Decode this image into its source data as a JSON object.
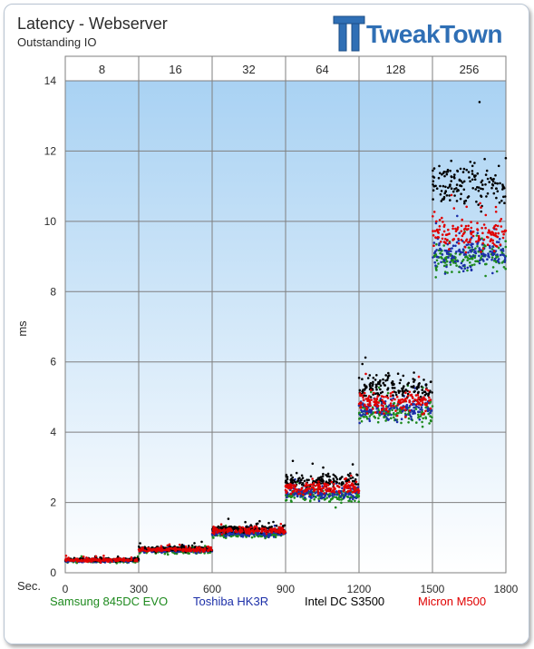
{
  "header": {
    "title": "Latency - Webserver",
    "subtitle": "Outstanding IO",
    "logo_text": "TweakTown"
  },
  "chart_data": {
    "type": "scatter",
    "title": "Latency - Webserver",
    "subtitle": "Outstanding IO",
    "xlabel": "Sec.",
    "ylabel": "ms",
    "xlim": [
      0,
      1800
    ],
    "ylim": [
      0,
      14
    ],
    "x_ticks": [
      0,
      300,
      600,
      900,
      1200,
      1500,
      1800
    ],
    "y_ticks": [
      0,
      2,
      4,
      6,
      8,
      10,
      12,
      14
    ],
    "grid": true,
    "top_axis": {
      "title": "Outstanding IO",
      "categories": [
        "8",
        "16",
        "32",
        "64",
        "128",
        "256"
      ],
      "segment_bounds": [
        [
          0,
          300
        ],
        [
          300,
          600
        ],
        [
          600,
          900
        ],
        [
          900,
          1200
        ],
        [
          1200,
          1500
        ],
        [
          1500,
          1800
        ]
      ]
    },
    "legend_position": "bottom",
    "series": [
      {
        "name": "Samsung 845DC  EVO",
        "color": "#1e8a1e",
        "segment_means": [
          0.34,
          0.62,
          1.08,
          2.2,
          4.55,
          8.9
        ],
        "segment_spreads": [
          0.05,
          0.06,
          0.08,
          0.17,
          0.3,
          0.45
        ]
      },
      {
        "name": "Toshiba HK3R",
        "color": "#1c2fa8",
        "segment_means": [
          0.35,
          0.64,
          1.12,
          2.25,
          4.65,
          9.1
        ],
        "segment_spreads": [
          0.05,
          0.06,
          0.08,
          0.17,
          0.3,
          0.45
        ]
      },
      {
        "name": "Intel DC S3500",
        "color": "#000000",
        "segment_means": [
          0.38,
          0.68,
          1.25,
          2.6,
          5.25,
          11.0
        ],
        "segment_spreads": [
          0.05,
          0.07,
          0.1,
          0.2,
          0.35,
          0.6
        ]
      },
      {
        "name": "Micron M500",
        "color": "#e00000",
        "segment_means": [
          0.36,
          0.66,
          1.2,
          2.4,
          4.85,
          9.6
        ],
        "segment_spreads": [
          0.05,
          0.06,
          0.08,
          0.17,
          0.3,
          0.45
        ]
      }
    ]
  }
}
